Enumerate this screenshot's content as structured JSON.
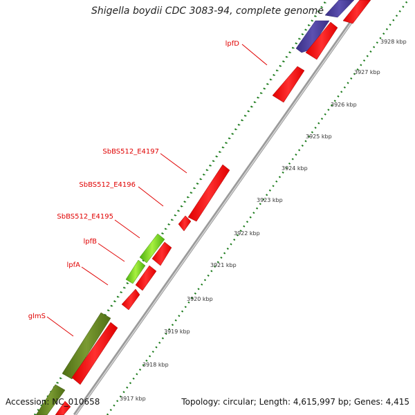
{
  "title": "Shigella boydii CDC 3083-94, complete genome",
  "footer": {
    "accession": "Accession: NC_010658",
    "topology": "Topology: circular; Length: 4,615,997 bp; Genes: 4,415"
  },
  "colors": {
    "forward_gene": "#ff1a1a",
    "reverse_gene": "#ff1a1a",
    "blue_gene": "#4b3f9a",
    "olive_gene": "#6b8e23",
    "lime_gene": "#7fcf1f",
    "backbone": "#888888",
    "dots": "#1a7a1a",
    "label": "#e00000"
  },
  "gene_labels": [
    "lpfD",
    "SbBS512_E4197",
    "SbBS512_E4196",
    "SbBS512_E4195",
    "lpfB",
    "lpfA",
    "glmS"
  ],
  "tick_labels": [
    "3928 kbp",
    "3927 kbp",
    "3926 kbp",
    "3925 kbp",
    "3924 kbp",
    "3923 kbp",
    "3922 kbp",
    "3921 kbp",
    "3920 kbp",
    "3919 kbp",
    "3918 kbp",
    "3917 kbp"
  ]
}
